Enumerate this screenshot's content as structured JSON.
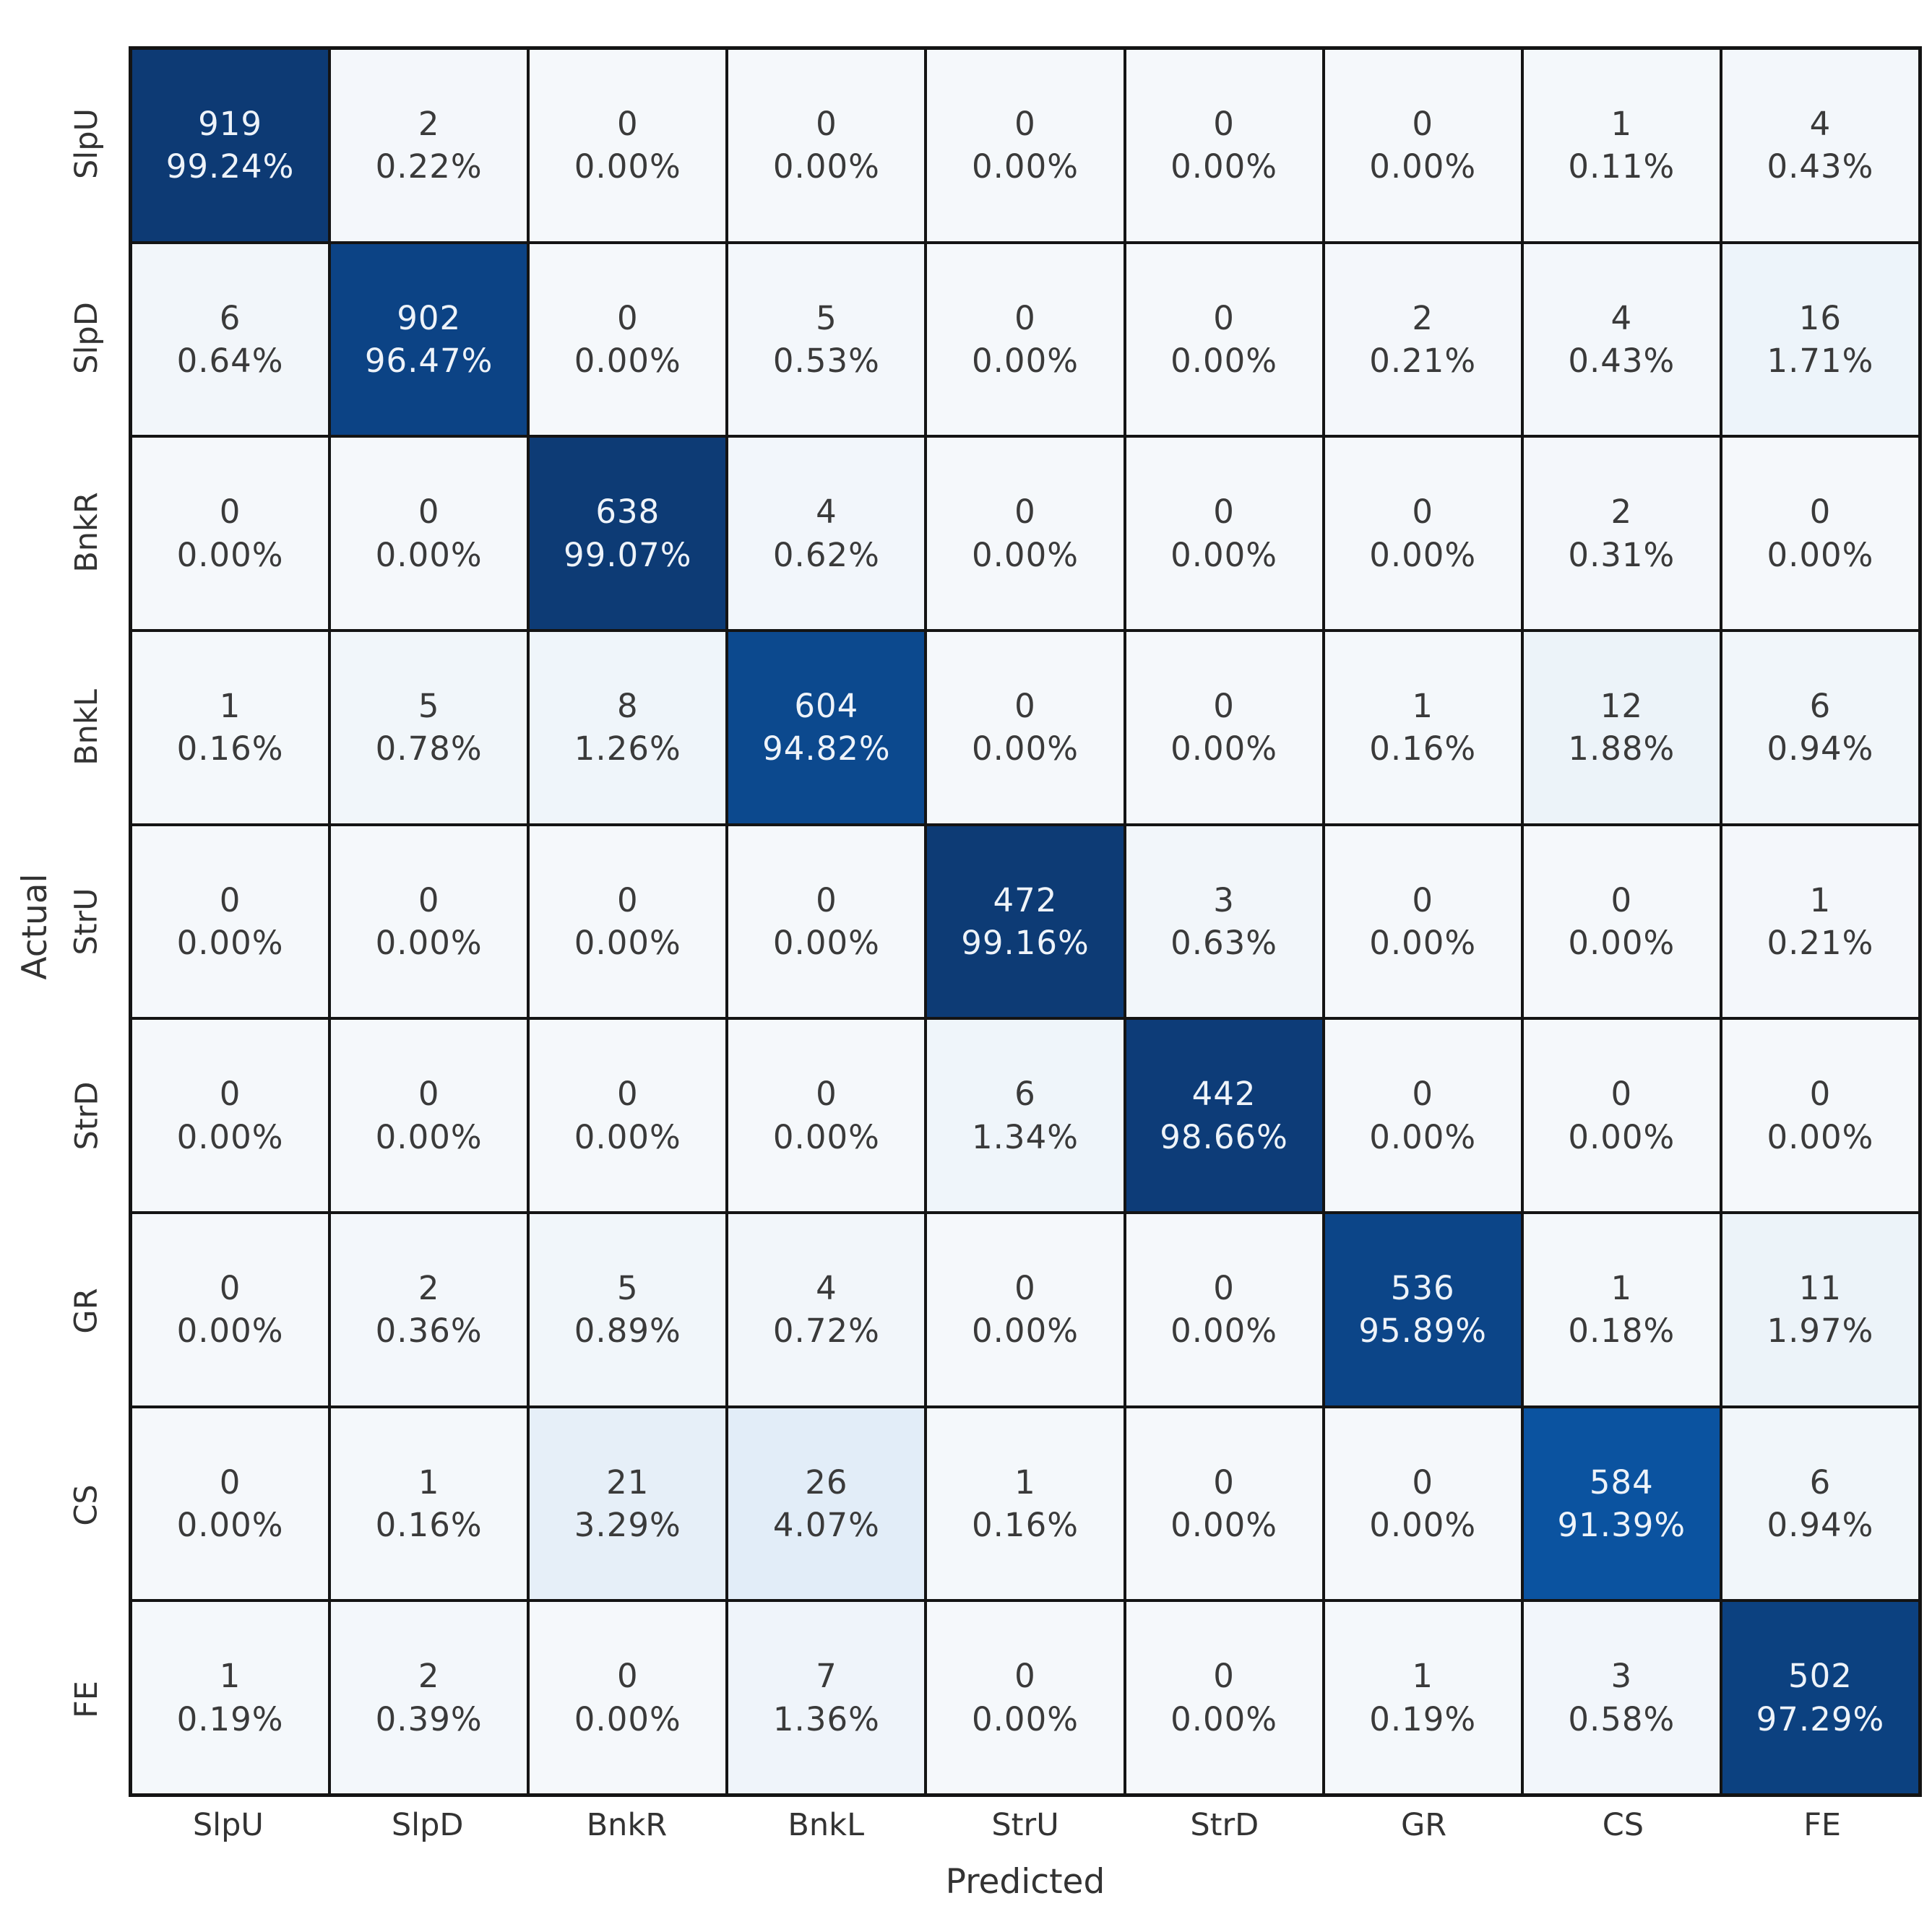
{
  "chart_data": {
    "type": "heatmap",
    "subtype": "confusion-matrix",
    "xlabel": "Predicted",
    "ylabel": "Actual",
    "x_labels": [
      "SlpU",
      "SlpD",
      "BnkR",
      "BnkL",
      "StrU",
      "StrD",
      "GR",
      "CS",
      "FE"
    ],
    "y_labels": [
      "SlpU",
      "SlpD",
      "BnkR",
      "BnkL",
      "StrU",
      "StrD",
      "GR",
      "CS",
      "FE"
    ],
    "counts": [
      [
        919,
        2,
        0,
        0,
        0,
        0,
        0,
        1,
        4
      ],
      [
        6,
        902,
        0,
        5,
        0,
        0,
        2,
        4,
        16
      ],
      [
        0,
        0,
        638,
        4,
        0,
        0,
        0,
        2,
        0
      ],
      [
        1,
        5,
        8,
        604,
        0,
        0,
        1,
        12,
        6
      ],
      [
        0,
        0,
        0,
        0,
        472,
        3,
        0,
        0,
        1
      ],
      [
        0,
        0,
        0,
        0,
        6,
        442,
        0,
        0,
        0
      ],
      [
        0,
        2,
        5,
        4,
        0,
        0,
        536,
        1,
        11
      ],
      [
        0,
        1,
        21,
        26,
        1,
        0,
        0,
        584,
        6
      ],
      [
        1,
        2,
        0,
        7,
        0,
        0,
        1,
        3,
        502
      ]
    ],
    "percents": [
      [
        99.24,
        0.22,
        0.0,
        0.0,
        0.0,
        0.0,
        0.0,
        0.11,
        0.43
      ],
      [
        0.64,
        96.47,
        0.0,
        0.53,
        0.0,
        0.0,
        0.21,
        0.43,
        1.71
      ],
      [
        0.0,
        0.0,
        99.07,
        0.62,
        0.0,
        0.0,
        0.0,
        0.31,
        0.0
      ],
      [
        0.16,
        0.78,
        1.26,
        94.82,
        0.0,
        0.0,
        0.16,
        1.88,
        0.94
      ],
      [
        0.0,
        0.0,
        0.0,
        0.0,
        99.16,
        0.63,
        0.0,
        0.0,
        0.21
      ],
      [
        0.0,
        0.0,
        0.0,
        0.0,
        1.34,
        98.66,
        0.0,
        0.0,
        0.0
      ],
      [
        0.0,
        0.36,
        0.89,
        0.72,
        0.0,
        0.0,
        95.89,
        0.18,
        1.97
      ],
      [
        0.0,
        0.16,
        3.29,
        4.07,
        0.16,
        0.0,
        0.0,
        91.39,
        0.94
      ],
      [
        0.19,
        0.39,
        0.0,
        1.36,
        0.0,
        0.0,
        0.19,
        0.58,
        97.29
      ]
    ],
    "percent_format": "0.00%",
    "grid": true,
    "legend": "none",
    "colormap": {
      "name": "Blues",
      "gridline_color": "#141414",
      "light_text_color": "#eef3f9",
      "dark_text_color": "#3a3a3a",
      "tick_label_color": "#333333",
      "stops": [
        {
          "t": 0.0,
          "color": "#f5f8fb"
        },
        {
          "t": 0.05,
          "color": "#deebf7"
        },
        {
          "t": 0.25,
          "color": "#9ecae1"
        },
        {
          "t": 0.5,
          "color": "#4292c6"
        },
        {
          "t": 0.75,
          "color": "#1565b0"
        },
        {
          "t": 0.92,
          "color": "#0b529f"
        },
        {
          "t": 1.0,
          "color": "#0d3870"
        }
      ]
    }
  }
}
